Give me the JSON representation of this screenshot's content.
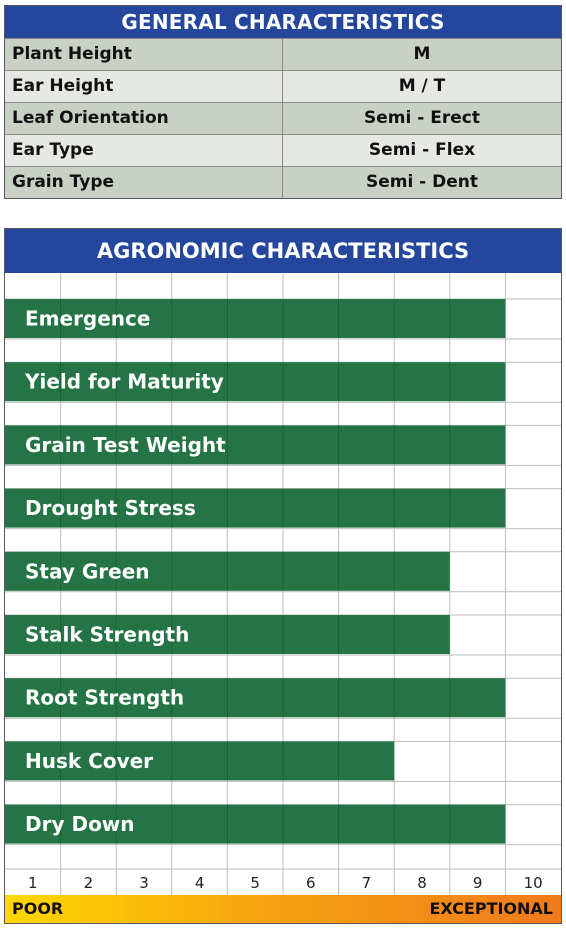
{
  "general": {
    "title": "GENERAL CHARACTERISTICS",
    "rows": [
      {
        "label": "Plant Height",
        "value": "M"
      },
      {
        "label": "Ear Height",
        "value": "M / T"
      },
      {
        "label": "Leaf Orientation",
        "value": "Semi - Erect"
      },
      {
        "label": "Ear Type",
        "value": "Semi - Flex"
      },
      {
        "label": "Grain Type",
        "value": "Semi - Dent"
      }
    ]
  },
  "agronomic": {
    "title": "AGRONOMIC CHARACTERISTICS",
    "scale_low_label": "POOR",
    "scale_high_label": "EXCEPTIONAL"
  },
  "colors": {
    "header_blue": "#24469c",
    "bar_green": "#257446",
    "scale_start": "#ffd800",
    "scale_end": "#f07a1c"
  },
  "chart_data": {
    "type": "bar",
    "orientation": "horizontal",
    "title": "AGRONOMIC CHARACTERISTICS",
    "categories": [
      "Emergence",
      "Yield for Maturity",
      "Grain Test Weight",
      "Drought Stress",
      "Stay Green",
      "Stalk Strength",
      "Root Strength",
      "Husk Cover",
      "Dry Down"
    ],
    "values": [
      9,
      9,
      9,
      9,
      8,
      8,
      9,
      7,
      9
    ],
    "x_ticks": [
      1,
      2,
      3,
      4,
      5,
      6,
      7,
      8,
      9,
      10
    ],
    "xlim": [
      0,
      10
    ],
    "grid": true
  }
}
